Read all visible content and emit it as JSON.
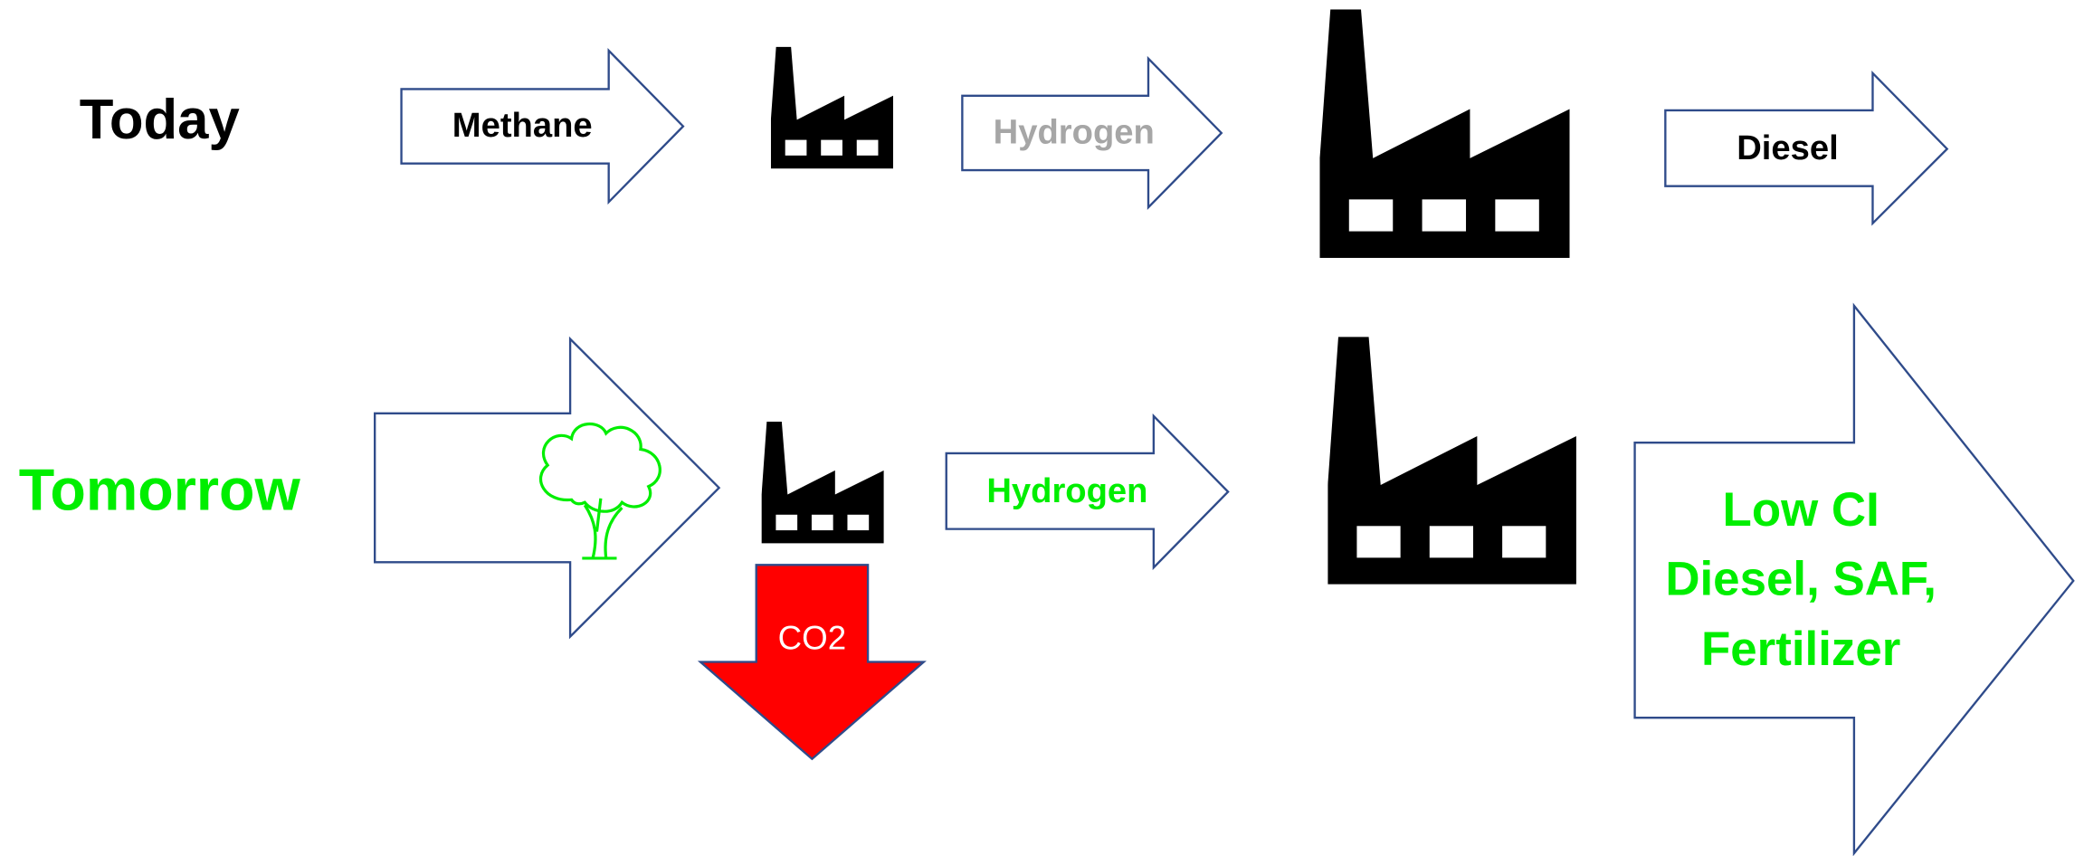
{
  "today": {
    "label": "Today",
    "feedstock": "Methane",
    "intermediate": "Hydrogen",
    "product": "Diesel"
  },
  "tomorrow": {
    "label": "Tomorrow",
    "intermediate": "Hydrogen",
    "emission": "CO2",
    "product": [
      "Low CI",
      "Diesel, SAF,",
      "Fertilizer"
    ]
  }
}
